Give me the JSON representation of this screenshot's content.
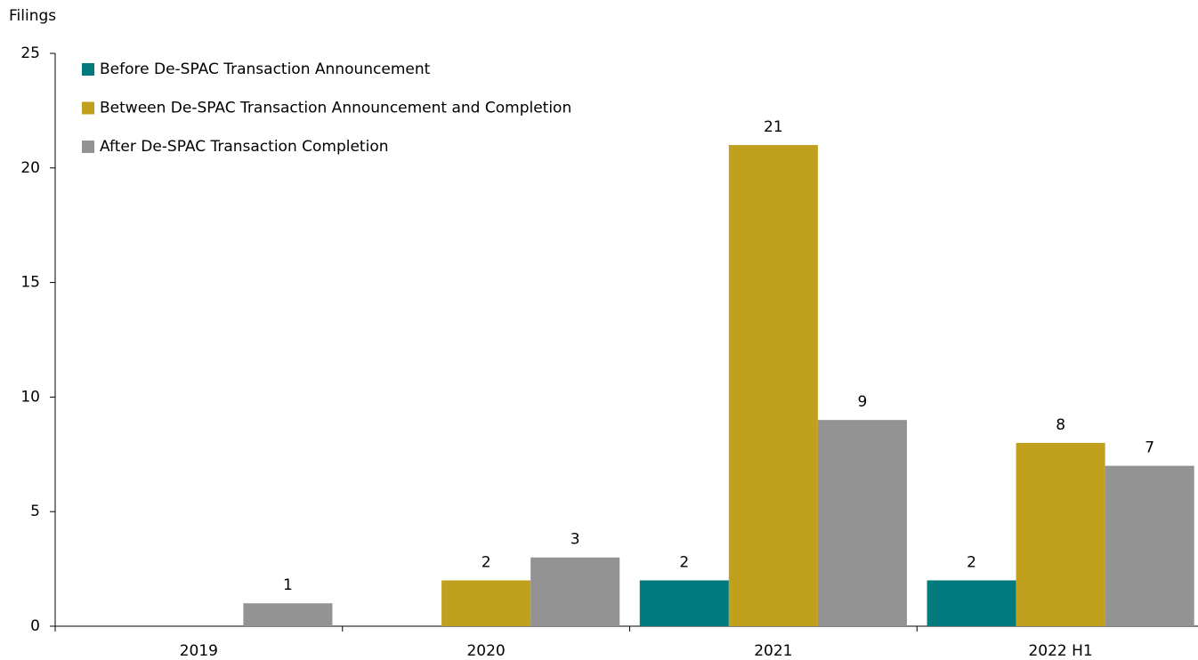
{
  "chart_data": {
    "type": "bar",
    "y_label": "Filings",
    "categories": [
      "2019",
      "2020",
      "2021",
      "2022 H1"
    ],
    "series": [
      {
        "name": "Before De-SPAC Transaction Announcement",
        "color": "#007a7c",
        "values": [
          null,
          null,
          2,
          2
        ]
      },
      {
        "name": "Between De-SPAC Transaction Announcement and Completion",
        "color": "#c1a01e",
        "values": [
          null,
          2,
          21,
          8
        ]
      },
      {
        "name": "After De-SPAC Transaction Completion",
        "color": "#939393",
        "values": [
          1,
          3,
          9,
          7
        ]
      }
    ],
    "ylim": [
      0,
      25
    ],
    "yticks": [
      0,
      5,
      10,
      15,
      20,
      25
    ],
    "grid": false,
    "legend": "top-left"
  }
}
